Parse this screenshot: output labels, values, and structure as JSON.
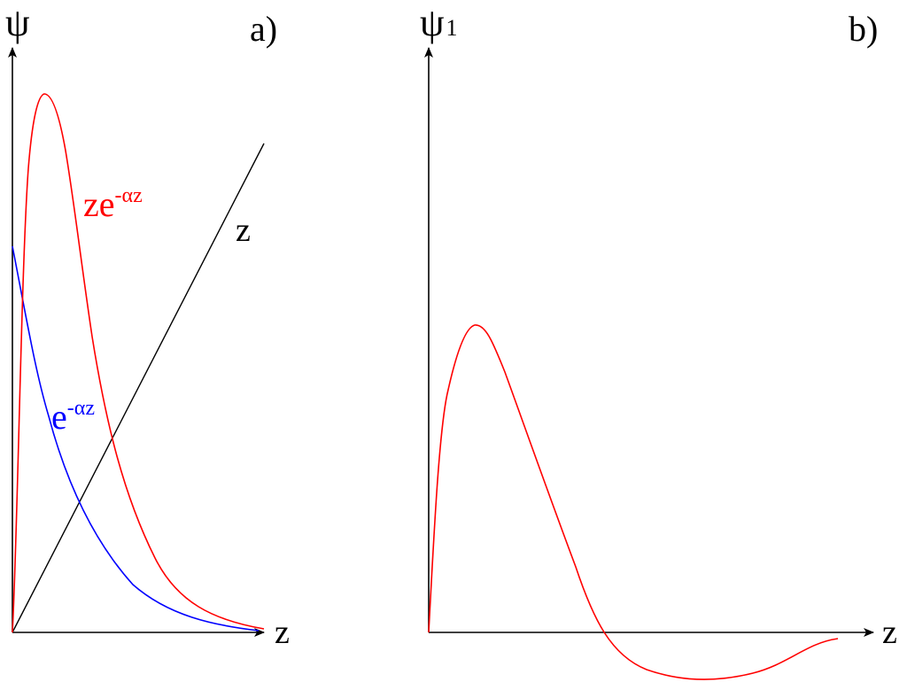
{
  "panel_a": {
    "tag": "a)",
    "y_label": "ψ",
    "x_label": "z",
    "curve_red": {
      "base": "ze",
      "exponent": "-αz",
      "color": "#ff0000"
    },
    "curve_blue": {
      "base": "e",
      "exponent": "-αz",
      "color": "#0000ff"
    },
    "curve_line_label": "z"
  },
  "panel_b": {
    "tag": "b)",
    "y_label": "ψ",
    "y_subscript": "1",
    "x_label": "z",
    "curve_color": "#ff0000"
  }
}
